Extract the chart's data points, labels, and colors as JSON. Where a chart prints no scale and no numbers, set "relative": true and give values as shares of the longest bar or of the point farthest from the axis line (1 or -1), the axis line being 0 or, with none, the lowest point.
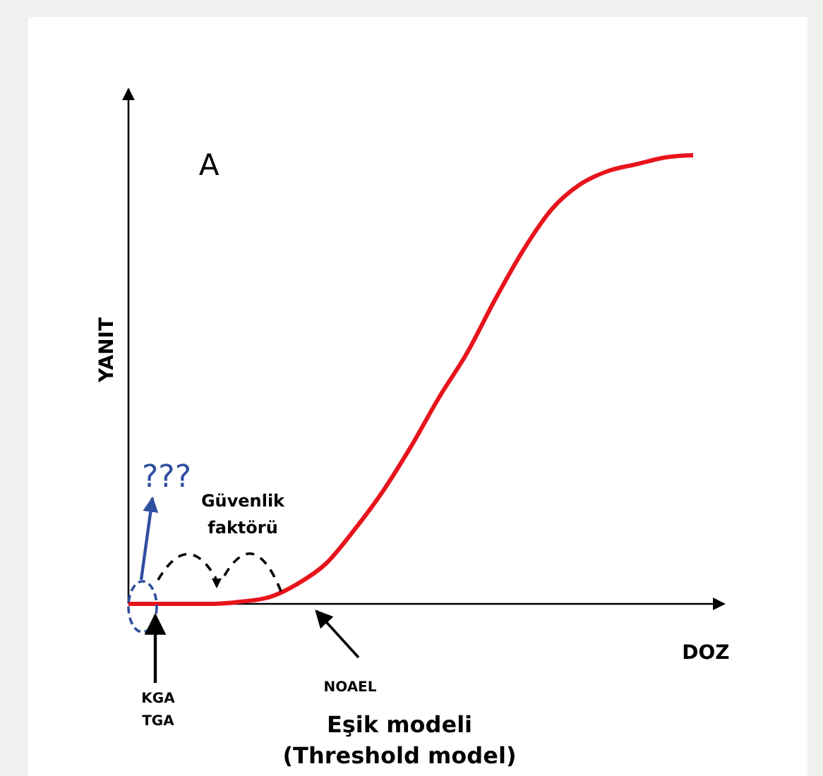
{
  "chart_data": {
    "type": "line",
    "relative": true,
    "title": "Eşik modeli\n(Threshold model)",
    "xlabel": "DOZ",
    "ylabel": "YANIT",
    "categories": [
      null,
      null,
      null,
      null,
      null,
      null,
      null,
      null,
      null,
      null,
      null,
      null,
      null,
      null,
      null,
      null,
      null,
      null,
      null,
      null,
      null
    ],
    "series": [
      {
        "color": "#e8141c",
        "values": [
          0,
          0,
          0,
          0,
          0.005,
          0.015,
          0.045,
          0.09,
          0.165,
          0.25,
          0.35,
          0.46,
          0.56,
          0.68,
          0.79,
          0.88,
          0.935,
          0.965,
          0.98,
          0.995,
          1
        ]
      }
    ],
    "annotations": [
      "A",
      "???",
      "Güvenlik faktörü",
      "KGA",
      "TGA",
      "NOAEL"
    ],
    "grid": false,
    "marker": "none",
    "line_style": "solid"
  }
}
